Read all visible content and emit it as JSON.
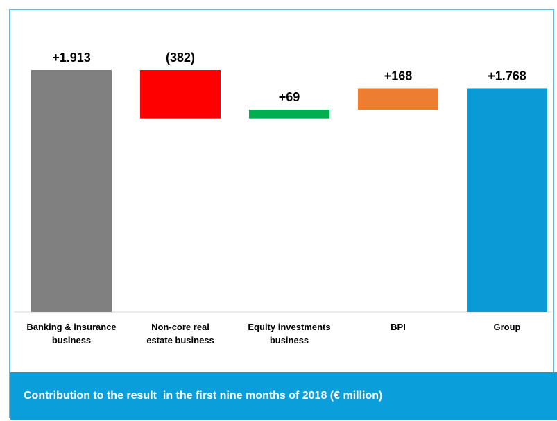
{
  "chart_data": {
    "type": "waterfall",
    "title": "Contribution to the result  in the first nine months of 2018 (€ million)",
    "categories": [
      "Banking & insurance business",
      "Non-core real estate business",
      "Equity investments business",
      "BPI",
      "Group"
    ],
    "values": [
      1913,
      -382,
      69,
      168,
      1768
    ],
    "value_labels": [
      "+1.913",
      "(382)",
      "+69",
      "+168",
      "+1.768"
    ],
    "measures": [
      "absolute",
      "relative",
      "relative",
      "relative",
      "total"
    ],
    "colors": [
      "#808080",
      "#ff0000",
      "#00b050",
      "#ed7d31",
      "#0a9ad6"
    ]
  }
}
